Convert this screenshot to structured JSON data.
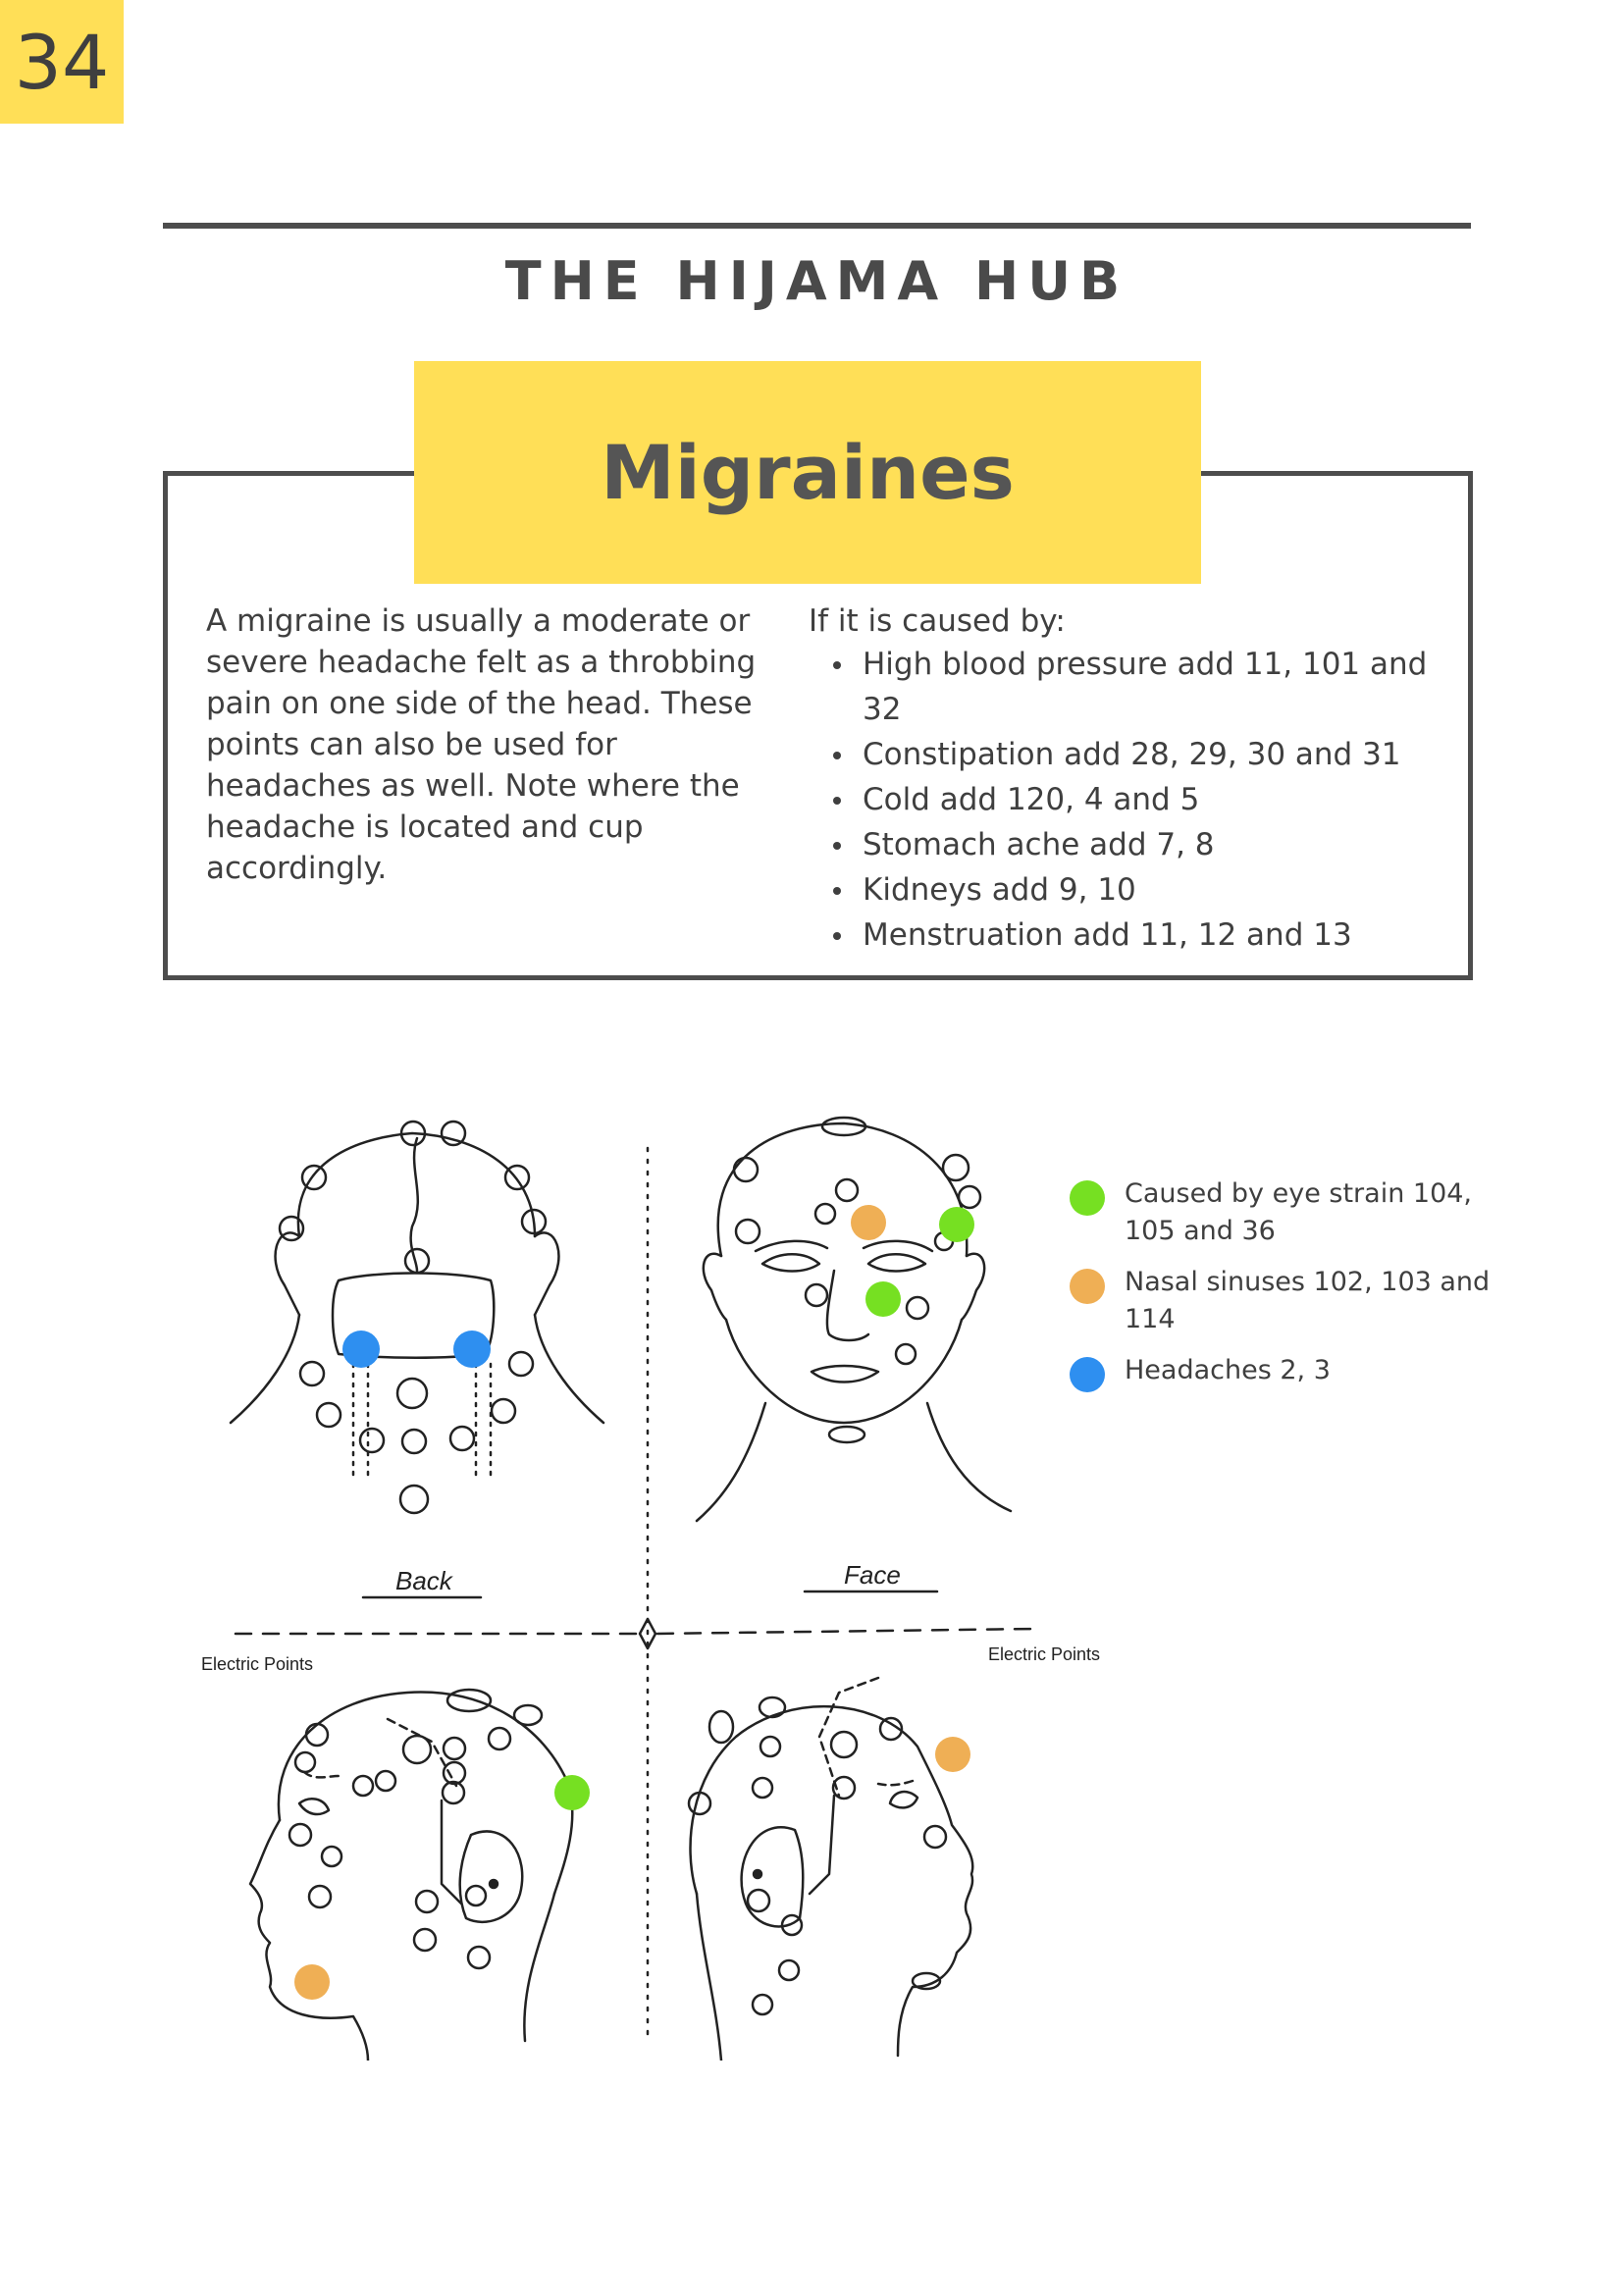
{
  "page_number": "34",
  "brand": "THE HIJAMA HUB",
  "title": "Migraines",
  "description": "A migraine is usually a moderate or severe headache felt as a throbbing pain on one side of the head.  These points can also be used for headaches as well.  Note where the headache is located and cup accordingly.",
  "causes": {
    "intro": "If it is caused by:",
    "items": [
      "High blood pressure add 11, 101 and 32",
      "Constipation add 28, 29, 30 and 31",
      "Cold add 120, 4 and 5",
      "Stomach ache add 7, 8",
      "Kidneys add 9, 10",
      "Menstruation add 11, 12 and 13"
    ]
  },
  "diagram": {
    "labels": {
      "back": "Back",
      "face": "Face",
      "electric_left": "Electric Points",
      "electric_right": "Electric Points"
    }
  },
  "legend": [
    {
      "label": "Caused by eye strain 104, 105 and 36",
      "color": "#76e022"
    },
    {
      "label": "Nasal sinuses 102, 103 and 114",
      "color": "#efaf55"
    },
    {
      "label": "Headaches 2, 3",
      "color": "#2e8ff0"
    }
  ],
  "colors": {
    "accent_yellow": "#ffdf57",
    "eye_strain_green": "#76e022",
    "nasal_orange": "#efaf55",
    "headache_blue": "#2e8ff0"
  }
}
